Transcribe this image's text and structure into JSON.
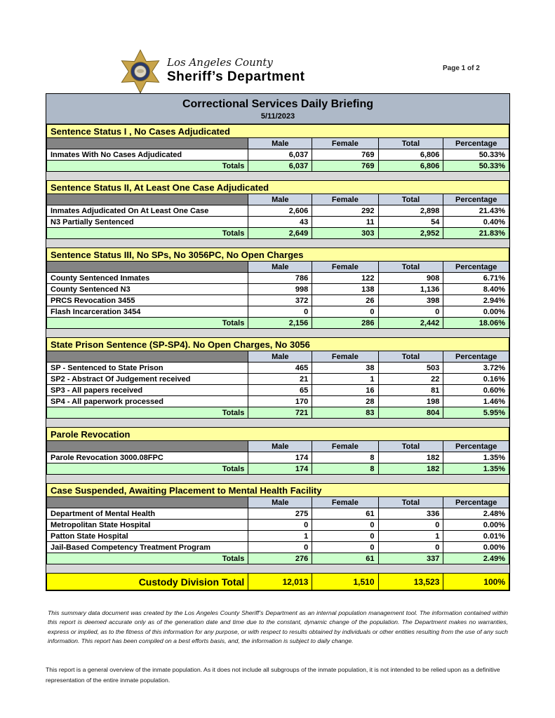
{
  "header": {
    "county": "Los Angeles County",
    "department": "Sheriff’s Department",
    "page_label": "Page 1 of 2",
    "badge_icon": "sheriff-star-badge"
  },
  "report": {
    "title": "Correctional Services Daily Briefing",
    "date": "5/11/2023",
    "columns": {
      "male": "Male",
      "female": "Female",
      "total": "Total",
      "percentage": "Percentage"
    },
    "totals_label": "Totals",
    "sections": [
      {
        "title": "Sentence Status I , No Cases Adjudicated",
        "rows": [
          {
            "label": "Inmates With No Cases Adjudicated",
            "male": "6,037",
            "female": "769",
            "total": "6,806",
            "percentage": "50.33%"
          }
        ],
        "totals": {
          "male": "6,037",
          "female": "769",
          "total": "6,806",
          "percentage": "50.33%"
        }
      },
      {
        "title": "Sentence Status II, At Least One Case Adjudicated",
        "rows": [
          {
            "label": "Inmates Adjudicated On At Least One Case",
            "male": "2,606",
            "female": "292",
            "total": "2,898",
            "percentage": "21.43%"
          },
          {
            "label": "N3 Partially Sentenced",
            "male": "43",
            "female": "11",
            "total": "54",
            "percentage": "0.40%"
          }
        ],
        "totals": {
          "male": "2,649",
          "female": "303",
          "total": "2,952",
          "percentage": "21.83%"
        }
      },
      {
        "title": "Sentence Status III, No SPs, No 3056PC, No Open Charges",
        "rows": [
          {
            "label": "County Sentenced Inmates",
            "male": "786",
            "female": "122",
            "total": "908",
            "percentage": "6.71%"
          },
          {
            "label": "County Sentenced N3",
            "male": "998",
            "female": "138",
            "total": "1,136",
            "percentage": "8.40%"
          },
          {
            "label": "PRCS Revocation 3455",
            "male": "372",
            "female": "26",
            "total": "398",
            "percentage": "2.94%"
          },
          {
            "label": "Flash Incarceration 3454",
            "male": "0",
            "female": "0",
            "total": "0",
            "percentage": "0.00%"
          }
        ],
        "totals": {
          "male": "2,156",
          "female": "286",
          "total": "2,442",
          "percentage": "18.06%"
        }
      },
      {
        "title": "State Prison Sentence (SP-SP4). No Open Charges, No 3056",
        "rows": [
          {
            "label": "SP - Sentenced to State Prison",
            "male": "465",
            "female": "38",
            "total": "503",
            "percentage": "3.72%"
          },
          {
            "label": "SP2 - Abstract Of Judgement received",
            "male": "21",
            "female": "1",
            "total": "22",
            "percentage": "0.16%"
          },
          {
            "label": "SP3 - All papers received",
            "male": "65",
            "female": "16",
            "total": "81",
            "percentage": "0.60%"
          },
          {
            "label": "SP4 - All paperwork processed",
            "male": "170",
            "female": "28",
            "total": "198",
            "percentage": "1.46%"
          }
        ],
        "totals": {
          "male": "721",
          "female": "83",
          "total": "804",
          "percentage": "5.95%"
        }
      },
      {
        "title": "Parole Revocation",
        "rows": [
          {
            "label": "Parole Revocation 3000.08FPC",
            "male": "174",
            "female": "8",
            "total": "182",
            "percentage": "1.35%"
          }
        ],
        "totals": {
          "male": "174",
          "female": "8",
          "total": "182",
          "percentage": "1.35%"
        }
      },
      {
        "title": "Case Suspended, Awaiting Placement to Mental Health Facility",
        "rows": [
          {
            "label": "Department of Mental Health",
            "male": "275",
            "female": "61",
            "total": "336",
            "percentage": "2.48%"
          },
          {
            "label": "Metropolitan State Hospital",
            "male": "0",
            "female": "0",
            "total": "0",
            "percentage": "0.00%"
          },
          {
            "label": "Patton State Hospital",
            "male": "1",
            "female": "0",
            "total": "1",
            "percentage": "0.01%"
          },
          {
            "label": "Jail-Based Competency Treatment Program",
            "male": "0",
            "female": "0",
            "total": "0",
            "percentage": "0.00%"
          }
        ],
        "totals": {
          "male": "276",
          "female": "61",
          "total": "337",
          "percentage": "2.49%"
        }
      }
    ],
    "grand_total": {
      "label": "Custody Division Total",
      "male": "12,013",
      "female": "1,510",
      "total": "13,523",
      "percentage": "100%"
    }
  },
  "colors": {
    "title_bar_bg": "#aeb9c8",
    "section_header_bg": "#ffffa0",
    "column_header_bg": "#ccd5e3",
    "label_header_bg": "#848484",
    "totals_row_bg": "#ccffcc",
    "grand_total_bg": "#ffff00",
    "page_bg": "#d8d8d8"
  },
  "disclaimer": "This summary data document was created by the Los Angeles County Sheriff’s Department as an internal population management tool.  The information contained within this report is deemed accurate only as of the generation date and time due to the constant, dynamic change of the population.  The Department makes no warranties, express or implied, as to the fitness of this information for any purpose, or with respect to results obtained by individuals or other entities resulting from the use of any such information.  This report has been compiled on a best efforts basis, and, the information is subject to daily change.",
  "footnote": "This report is a general overview of the inmate population.  As it does not include all subgroups of the inmate population, it is not intended to be relied upon as a definitive representation of the entire inmate population."
}
